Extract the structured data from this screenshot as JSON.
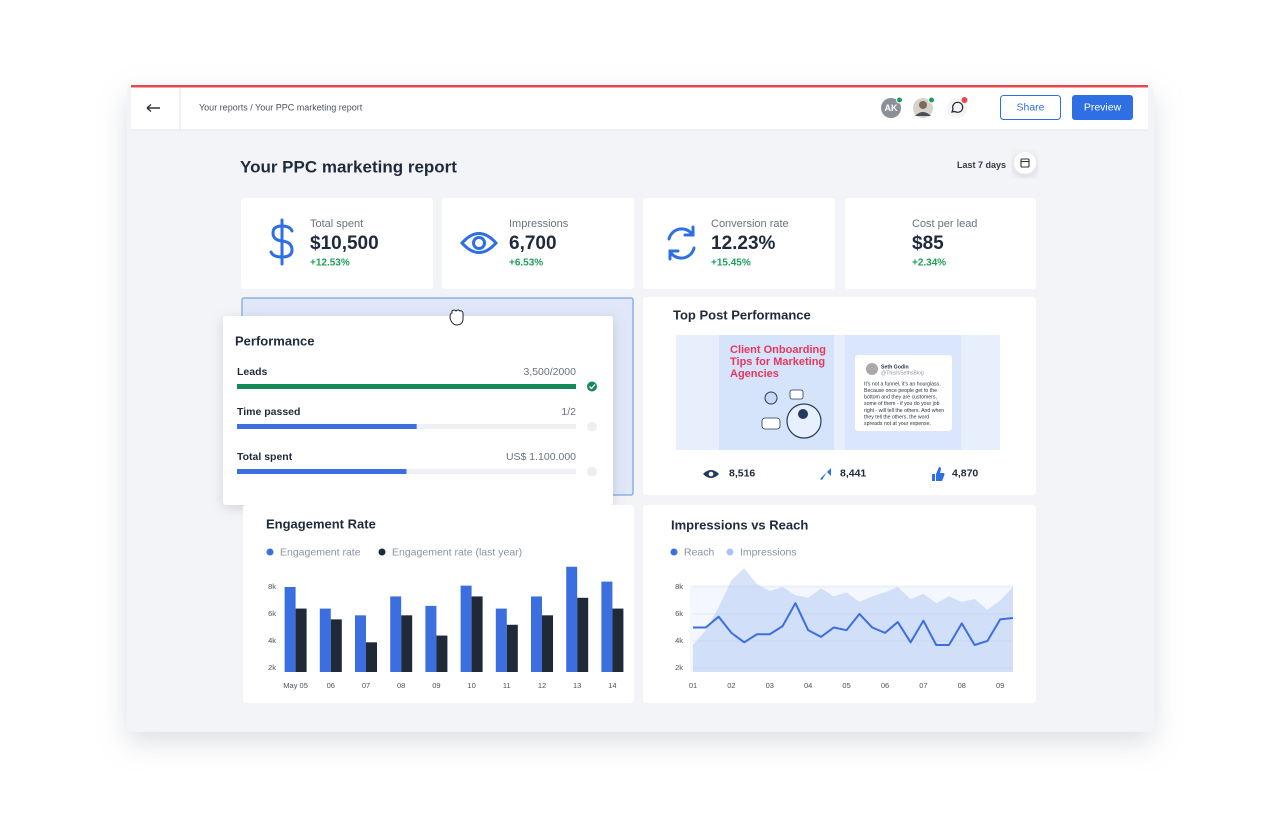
{
  "header": {
    "breadcrumb": "Your reports / Your PPC marketing report",
    "avatar_initials": "AK",
    "share": "Share",
    "preview": "Preview"
  },
  "report": {
    "title": "Your PPC marketing report",
    "date_range": "Last 7 days"
  },
  "kpis": [
    {
      "label": "Total spent",
      "value": "$10,500",
      "change": "+12.53%"
    },
    {
      "label": "Impressions",
      "value": "6,700",
      "change": "+6.53%"
    },
    {
      "label": "Conversion rate",
      "value": "12.23%",
      "change": "+15.45%"
    },
    {
      "label": "Cost per lead",
      "value": "$85",
      "change": "+2.34%"
    }
  ],
  "performance": {
    "title": "Performance",
    "rows": [
      {
        "label": "Leads",
        "value": "3,500/2000",
        "progress": 100,
        "color": "#13895a"
      },
      {
        "label": "Time passed",
        "value": "1/2",
        "progress": 53,
        "color": "#3b6fe0"
      },
      {
        "label": "Total spent",
        "value": "US$ 1.100.000",
        "progress": 50,
        "color": "#3b6fe0"
      }
    ]
  },
  "top_post": {
    "title": "Top Post Performance",
    "image_title_lines": [
      "Client Onboarding",
      "Tips for Marketing",
      "Agencies"
    ],
    "quote_author": "Seth Godin",
    "quote_handle": "@ThisIsSethsBlog",
    "quote_lines": [
      "It's not a funnel, it's an hourglass.",
      "Because once people get to the",
      "bottom and they are customers,",
      "some of them - if you do your job",
      "right - will tell the others. And when",
      "they tell the others, the word",
      "spreads not at your expense."
    ],
    "stats": [
      "8,516",
      "8,441",
      "4,870"
    ]
  },
  "chart_data": [
    {
      "type": "bar",
      "title": "Engagement Rate",
      "categories": [
        "May 05",
        "06",
        "07",
        "08",
        "09",
        "10",
        "11",
        "12",
        "13",
        "14"
      ],
      "series": [
        {
          "name": "Engagement rate",
          "color": "#3b6fe0",
          "values": [
            8000,
            6400,
            5900,
            7300,
            6600,
            8100,
            6400,
            7300,
            9500,
            8400
          ]
        },
        {
          "name": "Engagement rate (last year)",
          "color": "#1f2937",
          "values": [
            6400,
            5600,
            3900,
            5900,
            4400,
            7300,
            5200,
            5900,
            7200,
            6400
          ]
        }
      ],
      "ylim": [
        1700,
        9600
      ],
      "yticks": [
        {
          "value": 2000,
          "label": "2k"
        },
        {
          "value": 4000,
          "label": "4k"
        },
        {
          "value": 6000,
          "label": "6k"
        },
        {
          "value": 8000,
          "label": "8k"
        }
      ],
      "grid": false
    },
    {
      "type": "line",
      "title": "Impressions vs Reach",
      "categories": [
        "01",
        null,
        null,
        "02",
        null,
        null,
        "03",
        null,
        null,
        "04",
        null,
        null,
        "05",
        null,
        null,
        "06",
        null,
        null,
        "07",
        null,
        null,
        "08",
        null,
        null,
        "09",
        null
      ],
      "series": [
        {
          "name": "Reach",
          "color": "#3b6fe0",
          "style": "line",
          "values": [
            5000,
            5000,
            5800,
            4600,
            3900,
            4500,
            4500,
            5100,
            6800,
            4800,
            4300,
            5000,
            4800,
            6000,
            5000,
            4600,
            5400,
            3900,
            5500,
            3700,
            3700,
            5300,
            3700,
            4000,
            5600,
            5700
          ]
        },
        {
          "name": "Impressions",
          "color": "#a9c1f5",
          "style": "area",
          "values": [
            3700,
            4800,
            6500,
            8500,
            9400,
            8200,
            7700,
            8000,
            7400,
            7200,
            7900,
            7300,
            7600,
            6900,
            7300,
            7600,
            8000,
            7100,
            7500,
            6800,
            7300,
            6900,
            7100,
            6300,
            7000,
            8000
          ]
        }
      ],
      "ylim": [
        1700,
        9600
      ],
      "yticks": [
        {
          "value": 2000,
          "label": "2k"
        },
        {
          "value": 4000,
          "label": "4k"
        },
        {
          "value": 6000,
          "label": "6k"
        },
        {
          "value": 8000,
          "label": "8k"
        }
      ],
      "grid": true
    }
  ]
}
